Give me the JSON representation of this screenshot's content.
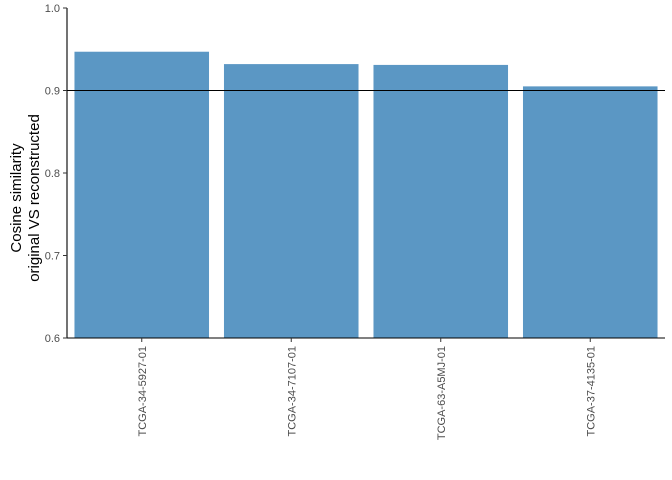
{
  "chart_data": {
    "type": "bar",
    "title": "",
    "xlabel": "",
    "ylabel_lines": [
      "Cosine similarity",
      "original VS reconstructed"
    ],
    "categories": [
      "TCGA-34-5927-01",
      "TCGA-34-7107-01",
      "TCGA-63-A5MJ-01",
      "TCGA-37-4135-01"
    ],
    "values": [
      0.947,
      0.932,
      0.931,
      0.905
    ],
    "ylim": [
      0.6,
      1.0
    ],
    "yticks": [
      0.6,
      0.7,
      0.8,
      0.9,
      1.0
    ],
    "ytick_labels": [
      "0.6",
      "0.7",
      "0.8",
      "0.9",
      "1.0"
    ],
    "reference_line": 0.9,
    "bar_color": "#5b97c4",
    "reference_line_color": "#000000",
    "grid": false
  }
}
